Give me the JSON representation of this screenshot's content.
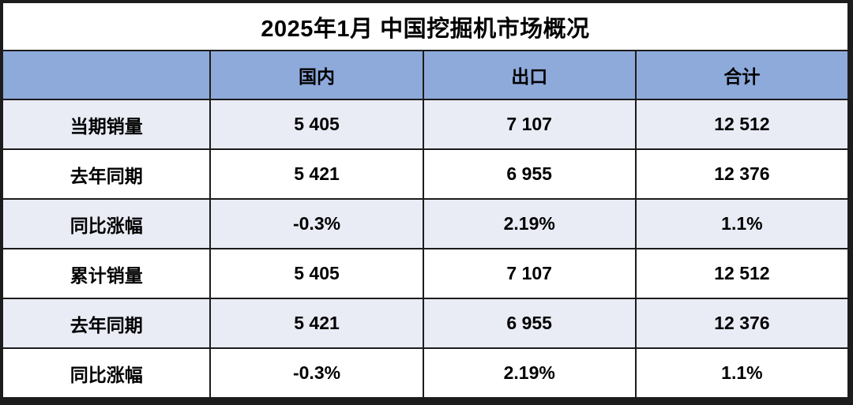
{
  "title": "2025年1月 中国挖掘机市场概况",
  "colors": {
    "header_bg": "#8EAADB",
    "row_alt_bg": "#E9EBF5",
    "row_bg": "#FFFFFF",
    "border": "#1C1C1C",
    "text": "#000000"
  },
  "table": {
    "columns": [
      "",
      "国内",
      "出口",
      "合计"
    ],
    "rows": [
      {
        "label": "当期销量",
        "values": [
          "5 405",
          "7 107",
          "12 512"
        ]
      },
      {
        "label": "去年同期",
        "values": [
          "5 421",
          "6 955",
          "12 376"
        ]
      },
      {
        "label": "同比涨幅",
        "values": [
          "-0.3%",
          "2.19%",
          "1.1%"
        ]
      },
      {
        "label": "累计销量",
        "values": [
          "5 405",
          "7 107",
          "12 512"
        ]
      },
      {
        "label": "去年同期",
        "values": [
          "5 421",
          "6 955",
          "12 376"
        ]
      },
      {
        "label": "同比涨幅",
        "values": [
          "-0.3%",
          "2.19%",
          "1.1%"
        ]
      }
    ]
  },
  "chart_data": {
    "type": "table",
    "title": "2025年1月 中国挖掘机市场概况",
    "columns": [
      "国内",
      "出口",
      "合计"
    ],
    "row_labels": [
      "当期销量",
      "去年同期",
      "同比涨幅",
      "累计销量",
      "去年同期",
      "同比涨幅"
    ],
    "rows": [
      [
        "5 405",
        "7 107",
        "12 512"
      ],
      [
        "5 421",
        "6 955",
        "12 376"
      ],
      [
        "-0.3%",
        "2.19%",
        "1.1%"
      ],
      [
        "5 405",
        "7 107",
        "12 512"
      ],
      [
        "5 421",
        "6 955",
        "12 376"
      ],
      [
        "-0.3%",
        "2.19%",
        "1.1%"
      ]
    ],
    "notes": "numbers use space as thousands separator; table has title row, blue column-header row, and 6 data rows alternating lavender/white"
  }
}
